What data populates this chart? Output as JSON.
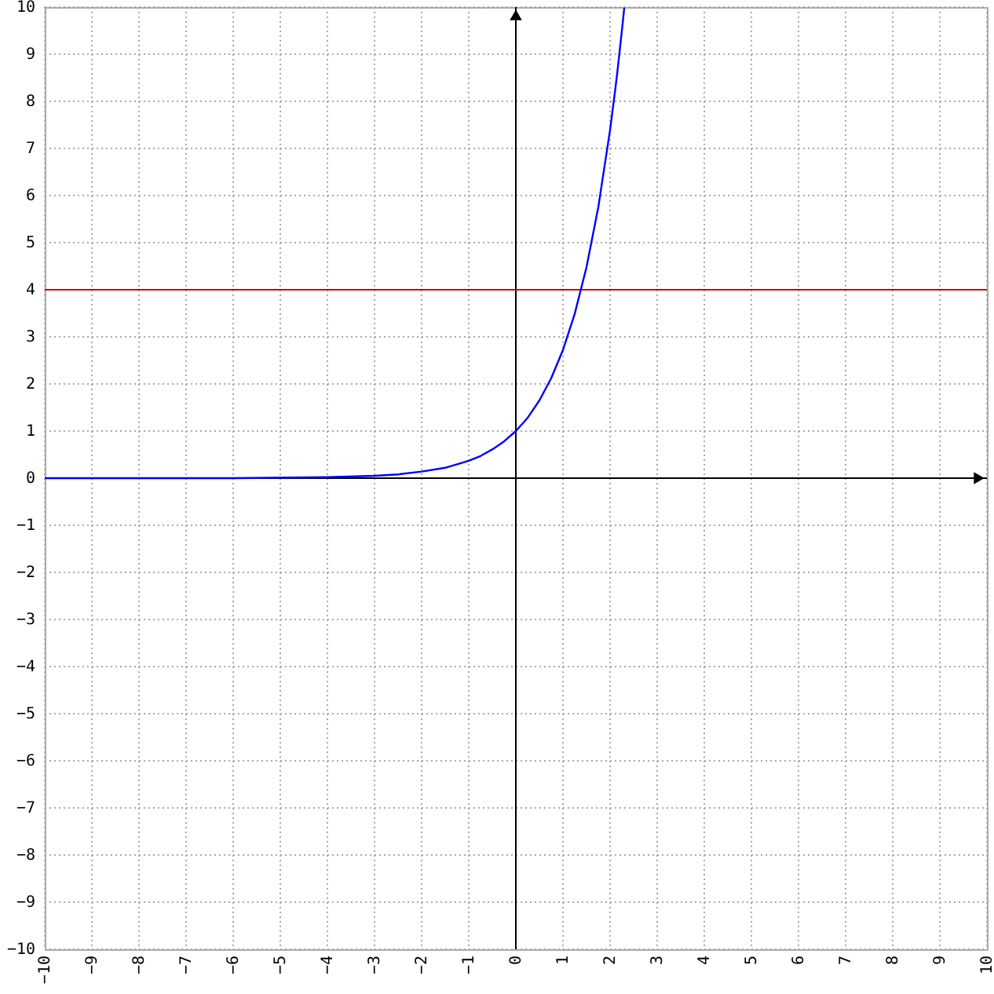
{
  "chart_data": {
    "type": "line",
    "x": [
      -10,
      -8,
      -6,
      -4,
      -3,
      -2.5,
      -2,
      -1.5,
      -1,
      -0.75,
      -0.5,
      -0.25,
      0,
      0.25,
      0.5,
      0.75,
      1,
      1.25,
      1.5,
      1.75,
      2,
      2.1,
      2.15,
      2.2,
      2.25,
      2.3
    ],
    "series": [
      {
        "color": "#0000ff",
        "values": [
          0,
          0,
          0,
          0.02,
          0.05,
          0.08,
          0.14,
          0.22,
          0.37,
          0.47,
          0.61,
          0.78,
          1,
          1.28,
          1.65,
          2.12,
          2.72,
          3.49,
          4.48,
          5.75,
          7.39,
          8.17,
          8.58,
          9.03,
          9.49,
          9.97
        ]
      }
    ],
    "xlim": [
      -10,
      10
    ],
    "ylim": [
      -10,
      10
    ],
    "xticks": [
      -10,
      -9,
      -8,
      -7,
      -6,
      -5,
      -4,
      -3,
      -2,
      -1,
      0,
      1,
      2,
      3,
      4,
      5,
      6,
      7,
      8,
      9,
      10
    ],
    "yticks": [
      -10,
      -9,
      -8,
      -7,
      -6,
      -5,
      -4,
      -3,
      -2,
      -1,
      0,
      1,
      2,
      3,
      4,
      5,
      6,
      7,
      8,
      9,
      10
    ],
    "grid": true,
    "ref_lines": [
      {
        "axis": "y",
        "value": 4,
        "color": "#cc0000"
      }
    ]
  }
}
